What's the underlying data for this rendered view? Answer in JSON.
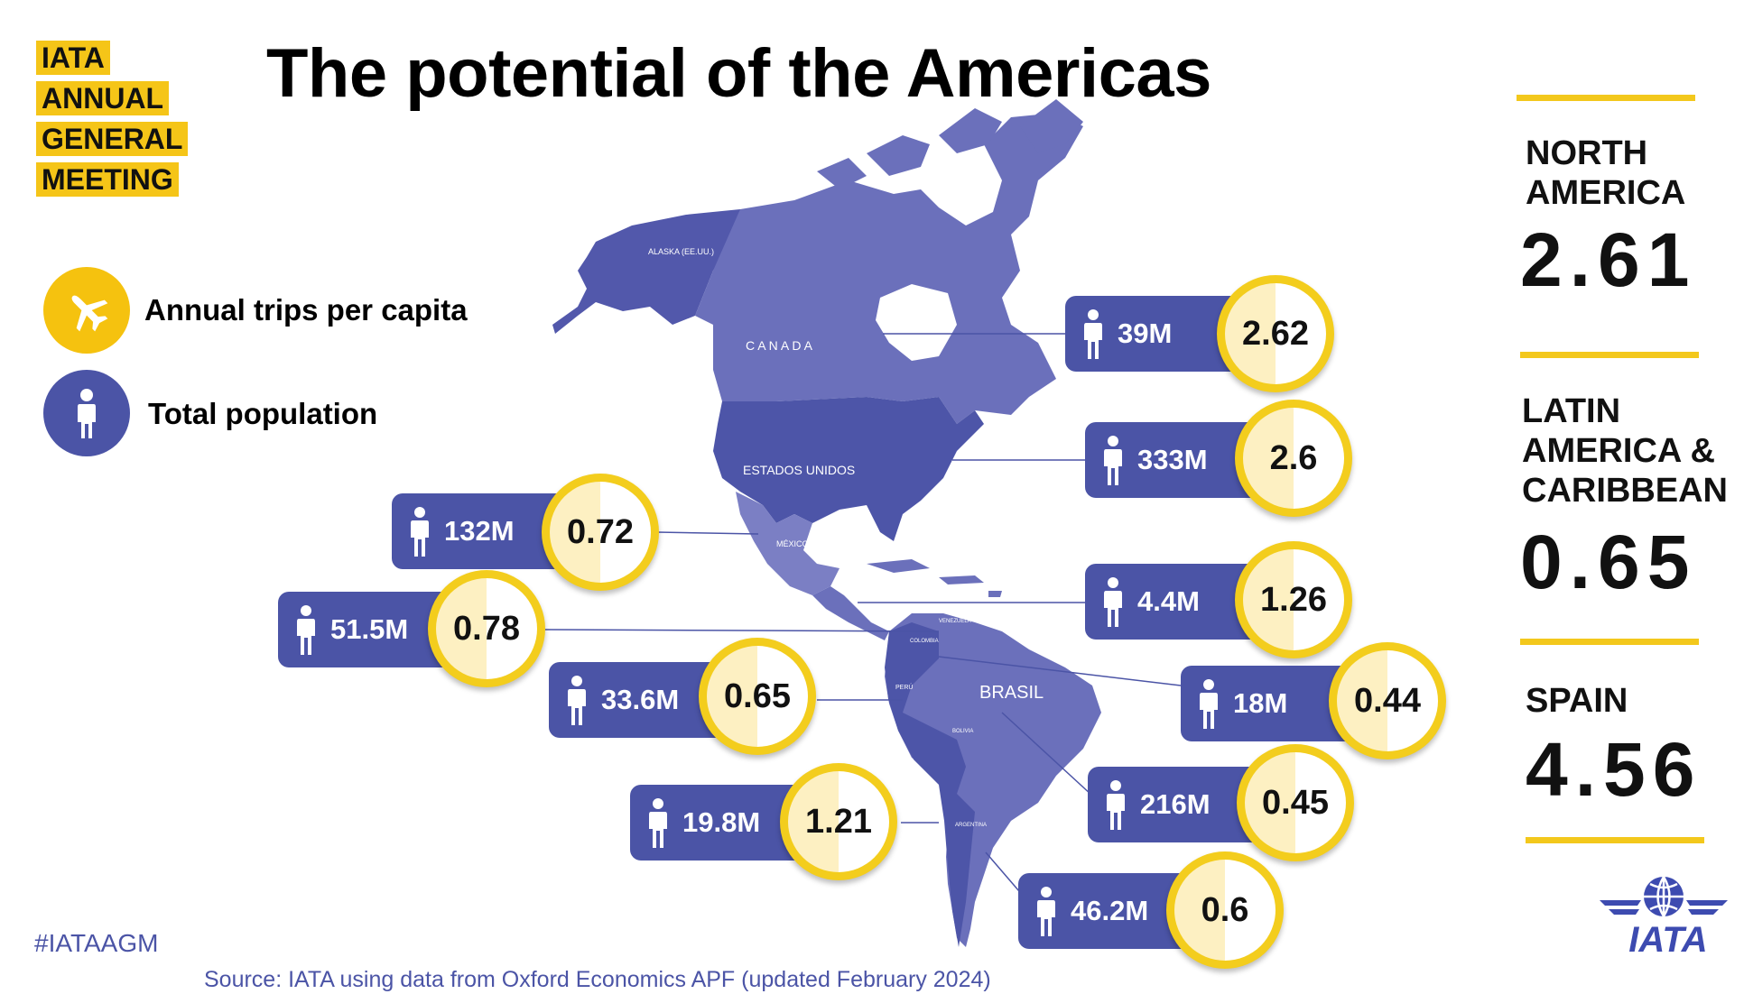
{
  "logo": {
    "lines": [
      "IATA",
      "ANNUAL",
      "GENERAL",
      "MEETING"
    ]
  },
  "title": "The potential of the Americas",
  "legend": {
    "trips_label": "Annual trips per capita",
    "population_label": "Total population"
  },
  "map_labels": {
    "alaska": "ALASKA (EE.UU.)",
    "canada": "C A N A D A",
    "usa": "ESTADOS UNIDOS",
    "mexico": "MÉXICO",
    "brasil": "BRASIL",
    "peru": "PERÚ",
    "bolivia": "BOLIVIA",
    "argentina": "ARGENTINA",
    "colombia": "COLOMBIA",
    "venezuela": "VENEZUELA"
  },
  "countries": [
    {
      "population": "39M",
      "trips": "2.62"
    },
    {
      "population": "333M",
      "trips": "2.6"
    },
    {
      "population": "132M",
      "trips": "0.72"
    },
    {
      "population": "4.4M",
      "trips": "1.26"
    },
    {
      "population": "51.5M",
      "trips": "0.78"
    },
    {
      "population": "33.6M",
      "trips": "0.65"
    },
    {
      "population": "18M",
      "trips": "0.44"
    },
    {
      "population": "216M",
      "trips": "0.45"
    },
    {
      "population": "19.8M",
      "trips": "1.21"
    },
    {
      "population": "46.2M",
      "trips": "0.6"
    }
  ],
  "regions": [
    {
      "name_line1": "NORTH",
      "name_line2": "AMERICA",
      "name_line3": "",
      "value": "2.61"
    },
    {
      "name_line1": "LATIN",
      "name_line2": "AMERICA &",
      "name_line3": "CARIBBEAN",
      "value": "0.65"
    },
    {
      "name_line1": "SPAIN",
      "name_line2": "",
      "name_line3": "",
      "value": "4.56"
    }
  ],
  "hashtag": "#IATAAGM",
  "source": "Source: IATA using data from Oxford Economics APF (updated February 2024)",
  "iata_logo_text": "IATA",
  "colors": {
    "navy": "#4b54a6",
    "yellow": "#f3c81c",
    "land": "#6b70bb",
    "land_dark": "#4d55a8"
  }
}
